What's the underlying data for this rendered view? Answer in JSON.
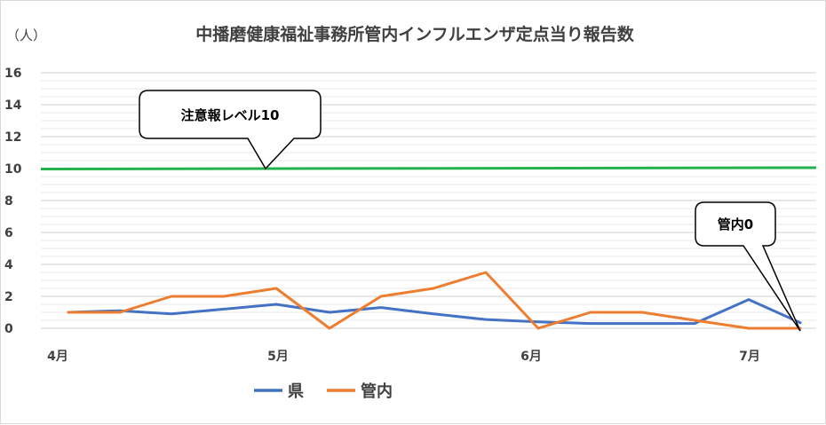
{
  "chart_data": {
    "type": "line",
    "title": "中播磨健康福祉事務所管内インフルエンザ定点当り報告数",
    "y_unit_label": "（人）",
    "ylim": [
      0,
      16
    ],
    "y_ticks": [
      "0",
      "2",
      "4",
      "6",
      "8",
      "10",
      "12",
      "14",
      "16"
    ],
    "x_month_labels": [
      "4月",
      "5月",
      "6月",
      "7月"
    ],
    "grid": true,
    "legend_position": "bottom-left",
    "series": [
      {
        "name": "県",
        "color": "#4472c4",
        "values": [
          1.0,
          1.1,
          0.9,
          1.2,
          1.5,
          1.0,
          1.3,
          0.9,
          0.55,
          0.4,
          0.3,
          0.3,
          0.3,
          1.8,
          0.35
        ]
      },
      {
        "name": "管内",
        "color": "#ed7d31",
        "values": [
          1.0,
          1.0,
          2.0,
          2.0,
          2.5,
          0.0,
          2.0,
          2.5,
          3.5,
          0.0,
          1.0,
          1.0,
          0.5,
          0.0,
          0.0
        ]
      }
    ],
    "reference_line": {
      "value": 10,
      "color": "#22b14c"
    },
    "annotations": [
      {
        "text": "注意報レベル10"
      },
      {
        "text": "管内0"
      }
    ]
  }
}
